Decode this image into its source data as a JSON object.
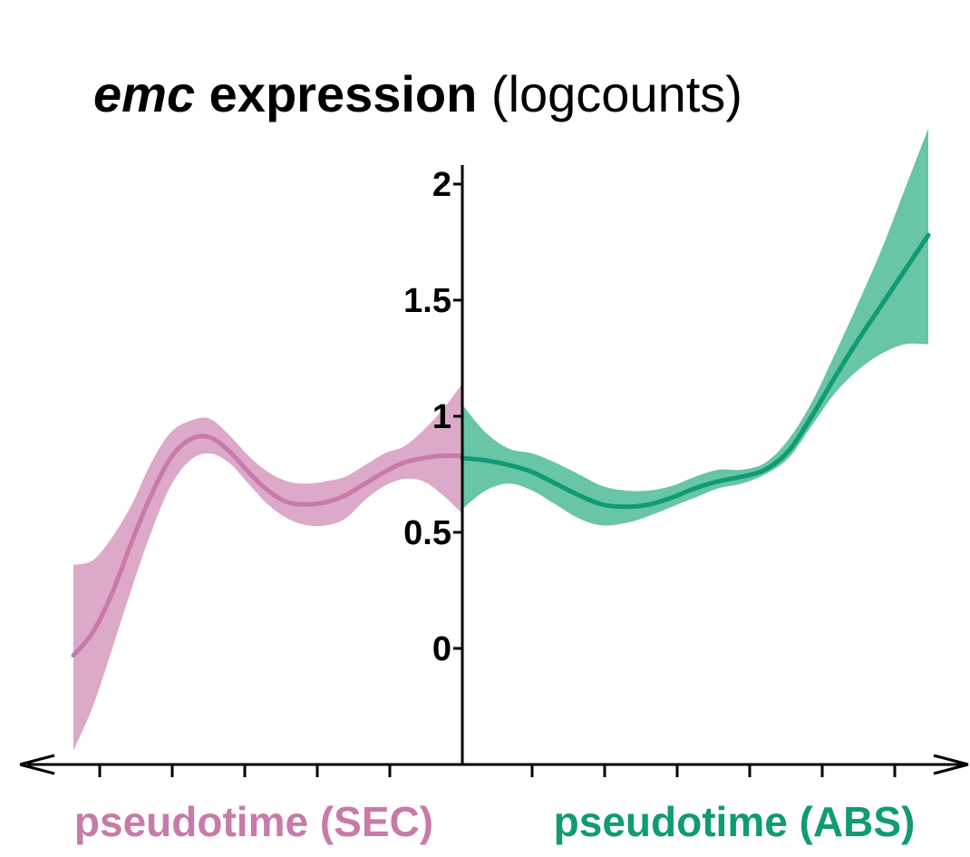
{
  "chart_data": {
    "type": "line",
    "title": {
      "gene": "emc",
      "bold": " expression",
      "units": " (logcounts)"
    },
    "ylim": [
      -0.5,
      2.1
    ],
    "yticks": [
      "0",
      "0.5",
      "1",
      "1.5",
      "2"
    ],
    "ytick_values": [
      0,
      0.5,
      1,
      1.5,
      2
    ],
    "x_tick_count_left": 5,
    "x_tick_count_right": 6,
    "grid": false,
    "legend": "none",
    "series": [
      {
        "name": "pseudotime (SEC)",
        "color": "#c87aa8",
        "band_color": "#dca9c8",
        "direction": "left",
        "x": [
          0,
          0.05,
          0.1,
          0.15,
          0.2,
          0.25,
          0.3,
          0.35,
          0.4,
          0.45,
          0.5,
          0.55,
          0.6,
          0.65,
          0.7,
          0.75,
          0.8,
          0.85,
          0.9,
          0.95,
          1.0
        ],
        "y": [
          0.83,
          0.83,
          0.82,
          0.8,
          0.76,
          0.71,
          0.66,
          0.63,
          0.62,
          0.63,
          0.68,
          0.76,
          0.85,
          0.91,
          0.9,
          0.82,
          0.66,
          0.46,
          0.24,
          0.07,
          -0.03
        ],
        "lower": [
          0.58,
          0.66,
          0.72,
          0.73,
          0.7,
          0.64,
          0.56,
          0.53,
          0.53,
          0.56,
          0.62,
          0.71,
          0.8,
          0.84,
          0.81,
          0.7,
          0.5,
          0.26,
          0.0,
          -0.25,
          -0.44
        ],
        "upper": [
          1.14,
          1.03,
          0.94,
          0.87,
          0.84,
          0.79,
          0.74,
          0.72,
          0.71,
          0.72,
          0.76,
          0.83,
          0.92,
          0.99,
          0.98,
          0.93,
          0.8,
          0.62,
          0.48,
          0.38,
          0.36
        ]
      },
      {
        "name": "pseudotime (ABS)",
        "color": "#0f9b73",
        "band_color": "#68c5a6",
        "direction": "right",
        "x": [
          0,
          0.05,
          0.1,
          0.15,
          0.2,
          0.25,
          0.3,
          0.35,
          0.4,
          0.45,
          0.5,
          0.55,
          0.6,
          0.65,
          0.7,
          0.75,
          0.8,
          0.85,
          0.9,
          0.95,
          1.0
        ],
        "y": [
          0.82,
          0.81,
          0.79,
          0.76,
          0.71,
          0.66,
          0.62,
          0.61,
          0.62,
          0.65,
          0.69,
          0.72,
          0.74,
          0.77,
          0.85,
          1.0,
          1.17,
          1.33,
          1.48,
          1.63,
          1.78
        ],
        "lower": [
          0.6,
          0.68,
          0.71,
          0.68,
          0.62,
          0.56,
          0.53,
          0.54,
          0.57,
          0.61,
          0.65,
          0.69,
          0.71,
          0.75,
          0.82,
          0.96,
          1.1,
          1.2,
          1.27,
          1.31,
          1.31
        ],
        "upper": [
          1.05,
          0.93,
          0.86,
          0.84,
          0.8,
          0.75,
          0.7,
          0.68,
          0.68,
          0.7,
          0.74,
          0.77,
          0.77,
          0.8,
          0.9,
          1.06,
          1.27,
          1.49,
          1.72,
          1.98,
          2.24
        ]
      }
    ]
  }
}
